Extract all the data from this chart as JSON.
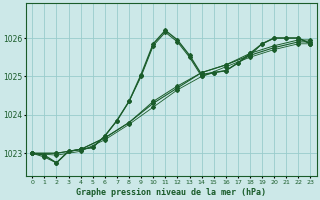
{
  "xlabel": "Graphe pression niveau de la mer (hPa)",
  "background_color": "#cce8e8",
  "grid_color": "#99cccc",
  "line_color": "#1a5c2a",
  "text_color": "#1a5c2a",
  "xlim": [
    -0.5,
    23.5
  ],
  "ylim": [
    1022.4,
    1026.9
  ],
  "yticks": [
    1023,
    1024,
    1025,
    1026
  ],
  "xticks": [
    0,
    1,
    2,
    3,
    4,
    5,
    6,
    7,
    8,
    9,
    10,
    11,
    12,
    13,
    14,
    15,
    16,
    17,
    18,
    19,
    20,
    21,
    22,
    23
  ],
  "series": [
    {
      "x": [
        0,
        1,
        2,
        3,
        4,
        5,
        6,
        7,
        8,
        9,
        10,
        11,
        12,
        13,
        14,
        15,
        16,
        17,
        18,
        19,
        20,
        21,
        22,
        23
      ],
      "y": [
        1023.0,
        1022.95,
        1022.75,
        1023.05,
        1023.1,
        1023.15,
        1023.45,
        1023.85,
        1024.35,
        1025.05,
        1025.85,
        1026.2,
        1025.95,
        1025.55,
        1025.05,
        1025.1,
        1025.15,
        1025.35,
        1025.6,
        1025.85,
        1026.0,
        1026.0,
        1026.0,
        1025.85
      ],
      "style": "-",
      "marker": "D",
      "markersize": 2.0,
      "linewidth": 1.0
    },
    {
      "x": [
        0,
        1,
        2,
        3,
        4,
        5,
        6,
        7,
        8,
        9,
        10,
        11,
        12,
        13,
        14,
        15,
        16,
        17,
        18,
        19,
        20,
        21,
        22,
        23
      ],
      "y": [
        1023.0,
        1022.9,
        1022.75,
        1023.05,
        1023.1,
        1023.15,
        1023.45,
        1023.85,
        1024.35,
        1025.0,
        1025.8,
        1026.15,
        1025.9,
        1025.5,
        1025.0,
        1025.1,
        1025.15,
        1025.35,
        1025.55,
        1025.85,
        1026.0,
        1026.0,
        1026.0,
        1025.85
      ],
      "style": "-",
      "marker": "D",
      "markersize": 2.0,
      "linewidth": 0.7
    },
    {
      "x": [
        0,
        2,
        4,
        6,
        8,
        10,
        12,
        14,
        16,
        18,
        20,
        22,
        23
      ],
      "y": [
        1023.0,
        1023.0,
        1023.1,
        1023.4,
        1023.8,
        1024.3,
        1024.7,
        1025.1,
        1025.3,
        1025.55,
        1025.75,
        1025.9,
        1025.9
      ],
      "style": "-",
      "marker": "D",
      "markersize": 2.0,
      "linewidth": 0.8
    },
    {
      "x": [
        0,
        2,
        4,
        6,
        8,
        10,
        12,
        14,
        16,
        18,
        20,
        22,
        23
      ],
      "y": [
        1023.0,
        1023.0,
        1023.1,
        1023.4,
        1023.8,
        1024.35,
        1024.75,
        1025.1,
        1025.3,
        1025.6,
        1025.8,
        1025.95,
        1025.95
      ],
      "style": "-",
      "marker": "D",
      "markersize": 2.0,
      "linewidth": 0.7
    },
    {
      "x": [
        0,
        2,
        4,
        6,
        8,
        10,
        12,
        14,
        16,
        18,
        20,
        22,
        23
      ],
      "y": [
        1023.0,
        1022.95,
        1023.05,
        1023.35,
        1023.75,
        1024.2,
        1024.65,
        1025.0,
        1025.25,
        1025.5,
        1025.7,
        1025.85,
        1025.85
      ],
      "style": "-",
      "marker": "D",
      "markersize": 2.0,
      "linewidth": 0.6
    }
  ]
}
